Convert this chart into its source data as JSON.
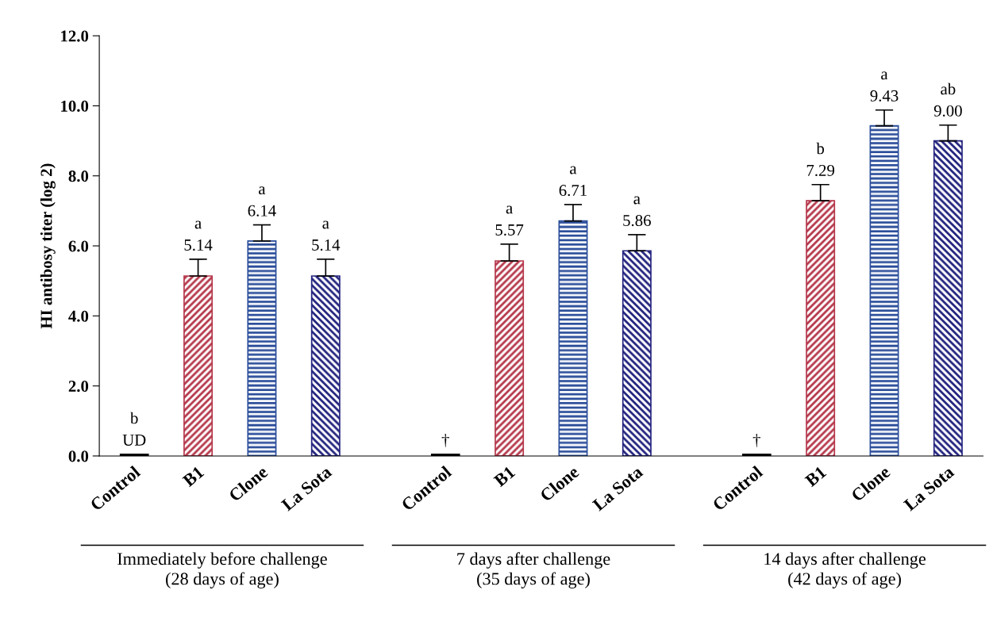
{
  "chart_data": {
    "type": "bar",
    "ylabel": "HI antibosy titer (log 2)",
    "categories": [
      "Immediately before challenge\n(28 days of age)",
      "7 days after challenge\n(35 days of age)",
      "14 days after challenge\n(42 days of age)"
    ],
    "series": [
      {
        "name": "Control",
        "color": "#000000",
        "values": [
          0.05,
          0.05,
          0.05
        ],
        "value_labels": [
          "b\nUD",
          "†",
          "†"
        ]
      },
      {
        "name": "B1",
        "color": "#b5364a",
        "values": [
          5.14,
          5.57,
          7.29
        ],
        "errors": [
          [
            5.14,
            5.62
          ],
          [
            5.57,
            6.05
          ],
          [
            7.29,
            7.75
          ]
        ],
        "value_labels": [
          "a\n5.14",
          "a\n5.57",
          "b\n7.29"
        ]
      },
      {
        "name": "Clone",
        "color": "#2a4d9a",
        "values": [
          6.14,
          6.71,
          9.43
        ],
        "errors": [
          [
            6.14,
            6.6
          ],
          [
            6.71,
            7.18
          ],
          [
            9.43,
            9.88
          ]
        ],
        "value_labels": [
          "a\n6.14",
          "a\n6.71",
          "a\n9.43"
        ]
      },
      {
        "name": "La Sota",
        "color": "#23237f",
        "values": [
          5.14,
          5.86,
          9.0
        ],
        "errors": [
          [
            5.14,
            5.62
          ],
          [
            5.86,
            6.32
          ],
          [
            9.0,
            9.45
          ]
        ],
        "value_labels": [
          "a\n5.14",
          "a\n5.86",
          "ab\n9.00"
        ]
      }
    ],
    "ylim": [
      0,
      12
    ],
    "yticks": [
      {
        "value": 0,
        "label": "0.0"
      },
      {
        "value": 2,
        "label": "2.0"
      },
      {
        "value": 4,
        "label": "4.0"
      },
      {
        "value": 6,
        "label": "6.0"
      },
      {
        "value": 8,
        "label": "8.0"
      },
      {
        "value": 10,
        "label": "10.0"
      },
      {
        "value": 12,
        "label": "12.0"
      }
    ],
    "grid": false,
    "legend": false
  }
}
